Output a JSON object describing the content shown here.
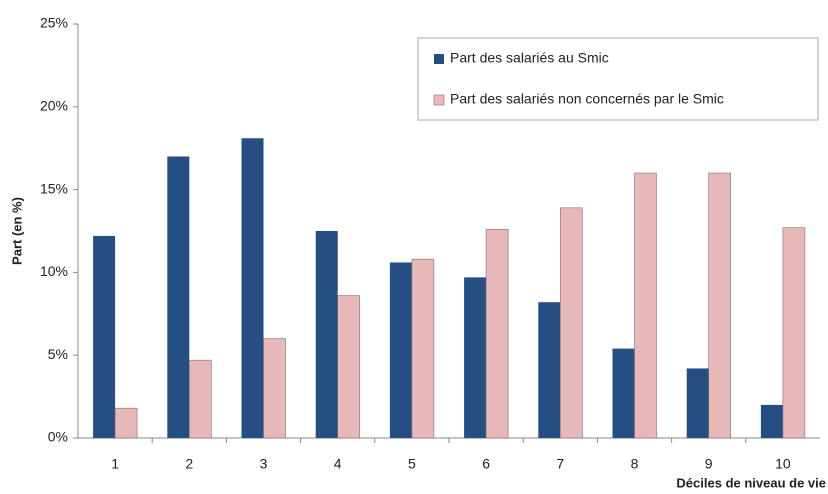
{
  "chart_data": {
    "type": "bar",
    "y_label": "Part (en %)",
    "x_label": "Déciles de niveau de vie",
    "categories": [
      "1",
      "2",
      "3",
      "4",
      "5",
      "6",
      "7",
      "8",
      "9",
      "10"
    ],
    "series": [
      {
        "name": "Part des salariés au Smic",
        "color": "#254e85",
        "values": [
          12.2,
          17.0,
          18.1,
          12.5,
          10.6,
          9.7,
          8.2,
          5.4,
          4.2,
          2.0
        ]
      },
      {
        "name": "Part des salariés non concernés par le Smic",
        "color": "#e6b8b7",
        "values": [
          1.8,
          4.7,
          6.0,
          8.6,
          10.8,
          12.6,
          13.9,
          16.0,
          16.0,
          12.7
        ]
      }
    ],
    "ylim": [
      0,
      25
    ],
    "yticks": [
      {
        "value": 0,
        "label": "0%"
      },
      {
        "value": 5,
        "label": "5%"
      },
      {
        "value": 10,
        "label": "10%"
      },
      {
        "value": 15,
        "label": "15%"
      },
      {
        "value": 20,
        "label": "20%"
      },
      {
        "value": 25,
        "label": "25%"
      }
    ],
    "grid": false,
    "legend": "upper right"
  }
}
